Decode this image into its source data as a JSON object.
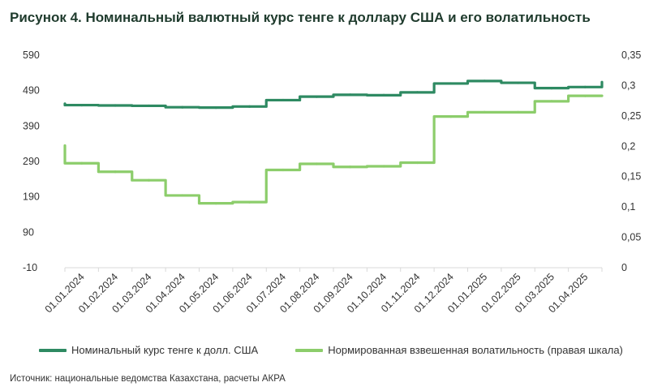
{
  "title": "Рисунок 4. Номинальный валютный курс тенге к доллару США и его волатильность",
  "source": "Источник: национальные ведомства Казахстана, расчеты АКРА",
  "colors": {
    "series1": "#2e8a62",
    "series2": "#8ccd6b",
    "axis": "#d9d9d9"
  },
  "chart_data": {
    "type": "line",
    "title": "Рисунок 4. Номинальный валютный курс тенге к доллару США и его волатильность",
    "x_tick_labels": [
      "01.01.2024",
      "01.02.2024",
      "01.03.2024",
      "01.04.2024",
      "01.05.2024",
      "01.06.2024",
      "01.07.2024",
      "01.08.2024",
      "01.09.2024",
      "01.10.2024",
      "01.11.2024",
      "01.12.2024",
      "01.01.2025",
      "01.02.2025",
      "01.03.2025",
      "01.04.2025"
    ],
    "y_left": {
      "ticks": [
        "590",
        "490",
        "390",
        "290",
        "190",
        "90",
        "-10"
      ],
      "range": [
        -10,
        590
      ]
    },
    "y_right": {
      "ticks": [
        "0,35",
        "0,3",
        "0,25",
        "0,2",
        "0,15",
        "0,1",
        "0,05",
        "0"
      ],
      "range": [
        0,
        0.35
      ]
    },
    "grid": false,
    "legend_position": "bottom",
    "series": [
      {
        "name": "Номинальный курс тенге к долл. США",
        "axis": "left",
        "step": true,
        "values": [
          449,
          448,
          447,
          443,
          442,
          445,
          463,
          473,
          478,
          477,
          485,
          510,
          517,
          512,
          497,
          500
        ],
        "start_value": 453,
        "end_value": 514
      },
      {
        "name": "Нормированная взвешенная волатильность (правая шкала)",
        "axis": "right",
        "step": true,
        "values": [
          0.172,
          0.158,
          0.144,
          0.119,
          0.106,
          0.108,
          0.161,
          0.171,
          0.166,
          0.167,
          0.173,
          0.249,
          0.256,
          0.256,
          0.274,
          0.283
        ],
        "start_value": 0.201,
        "end_value": 0.283
      }
    ]
  }
}
